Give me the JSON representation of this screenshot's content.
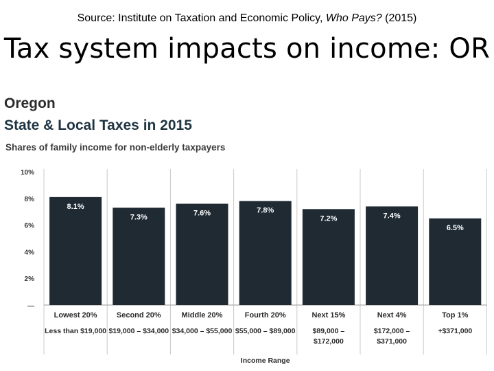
{
  "header": {
    "source_prefix": "Source: Institute on Taxation and Economic Policy, ",
    "source_italic": "Who Pays?",
    "source_suffix": " (2015)",
    "title": "Tax system impacts on income: OR"
  },
  "chart_data": {
    "type": "bar",
    "state": "Oregon",
    "title": "State & Local Taxes in 2015",
    "subtitle": "Shares of family income for non-elderly taxpayers",
    "xlabel": "Income Range",
    "ylabel": "",
    "ylim": [
      0,
      10
    ],
    "yticks": [
      "10%",
      "8%",
      "6%",
      "4%",
      "2%",
      "—"
    ],
    "categories": [
      "Lowest 20%",
      "Second 20%",
      "Middle 20%",
      "Fourth 20%",
      "Next 15%",
      "Next 4%",
      "Top 1%"
    ],
    "ranges": [
      [
        "Less than $19,000"
      ],
      [
        "$19,000 – $34,000"
      ],
      [
        "$34,000 – $55,000"
      ],
      [
        "$55,000 – $89,000"
      ],
      [
        "$89,000 –",
        "$172,000"
      ],
      [
        "$172,000 –",
        "$371,000"
      ],
      [
        "+$371,000"
      ]
    ],
    "values": [
      8.1,
      7.3,
      7.6,
      7.8,
      7.2,
      7.4,
      6.5
    ],
    "value_labels": [
      "8.1%",
      "7.3%",
      "7.6%",
      "7.8%",
      "7.2%",
      "7.4%",
      "6.5%"
    ],
    "colors": {
      "bar": "#1f2a33",
      "label": "#ffffff",
      "separator": "#c8c8c8"
    },
    "grid": false
  }
}
